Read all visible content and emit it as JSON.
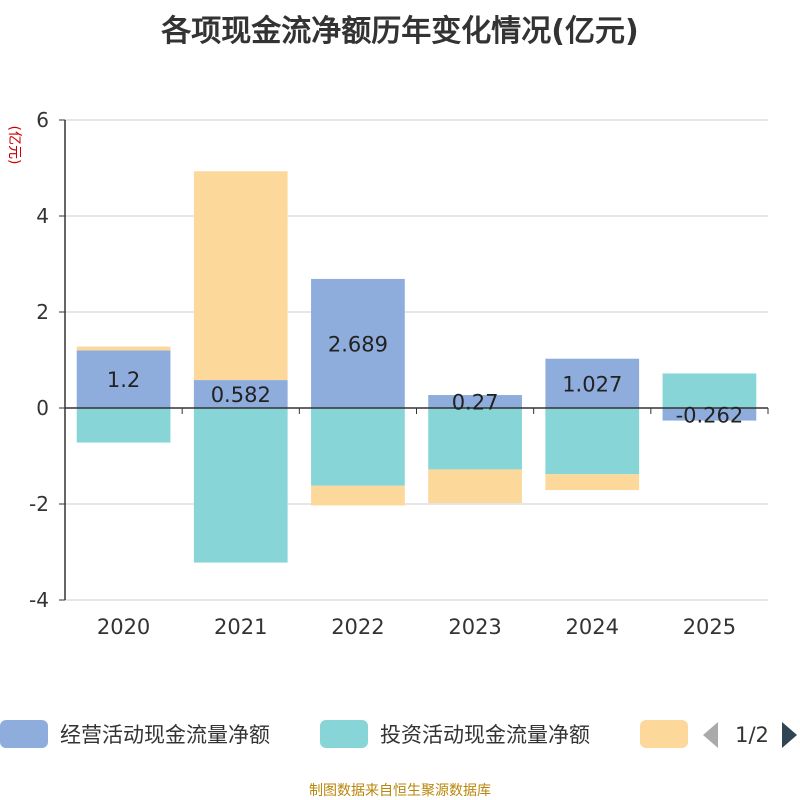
{
  "chart_data": {
    "type": "bar",
    "stacked": true,
    "title": "各项现金流净额历年变化情况(亿元)",
    "ylabel": "(亿元)",
    "xlabel": "",
    "ylim": [
      -4,
      6
    ],
    "yticks": [
      -4,
      -2,
      0,
      2,
      4,
      6
    ],
    "grid": true,
    "categories": [
      "2020",
      "2021",
      "2022",
      "2023",
      "2024",
      "2025"
    ],
    "series": [
      {
        "name": "经营活动现金流量净额",
        "color": "#8eaddc",
        "values": [
          1.2,
          0.582,
          2.689,
          0.27,
          1.027,
          -0.262
        ],
        "labels": [
          "1.2",
          "0.582",
          "2.689",
          "0.27",
          "1.027",
          "-0.262"
        ]
      },
      {
        "name": "投资活动现金流量净额",
        "color": "#88d5d8",
        "values": [
          -0.72,
          -3.22,
          -1.62,
          -1.28,
          -1.38,
          0.72
        ]
      },
      {
        "name": "",
        "color": "#fdd89b",
        "values": [
          0.08,
          4.35,
          -0.41,
          -0.7,
          -0.33,
          0.0
        ]
      }
    ],
    "legend": {
      "position": "bottom",
      "page": "1/2"
    }
  },
  "footer": {
    "source": "制图数据来自恒生聚源数据库"
  }
}
